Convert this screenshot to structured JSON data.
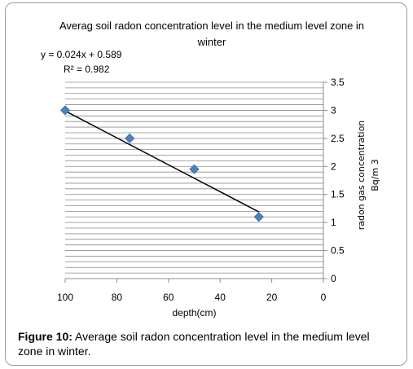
{
  "chart_data": {
    "type": "scatter",
    "title_line1": "Averag soil radon concentration level in the medium level zone in",
    "title_line2": "winter",
    "trendline": {
      "equation": "y = 0.024x + 0.589",
      "r2": "R² = 0.982",
      "slope": 0.024,
      "intercept": 0.589
    },
    "x": [
      100,
      75,
      50,
      25
    ],
    "y": [
      3.0,
      2.5,
      1.95,
      1.1
    ],
    "xlim": [
      100,
      0
    ],
    "ylim": [
      0,
      3.5
    ],
    "xticks": [
      100,
      80,
      60,
      40,
      20,
      0
    ],
    "yticks": [
      0,
      0.5,
      1,
      1.5,
      2,
      2.5,
      3,
      3.5
    ],
    "xlabel": "depth(cm)",
    "ylabel_line1": "radon gas concentration",
    "ylabel_line2": "Bq/m 3",
    "marker_color": "#4f81bd",
    "grid": true
  },
  "caption": {
    "label": "Figure 10:",
    "text": " Average soil radon concentration level in the medium level zone in winter."
  }
}
